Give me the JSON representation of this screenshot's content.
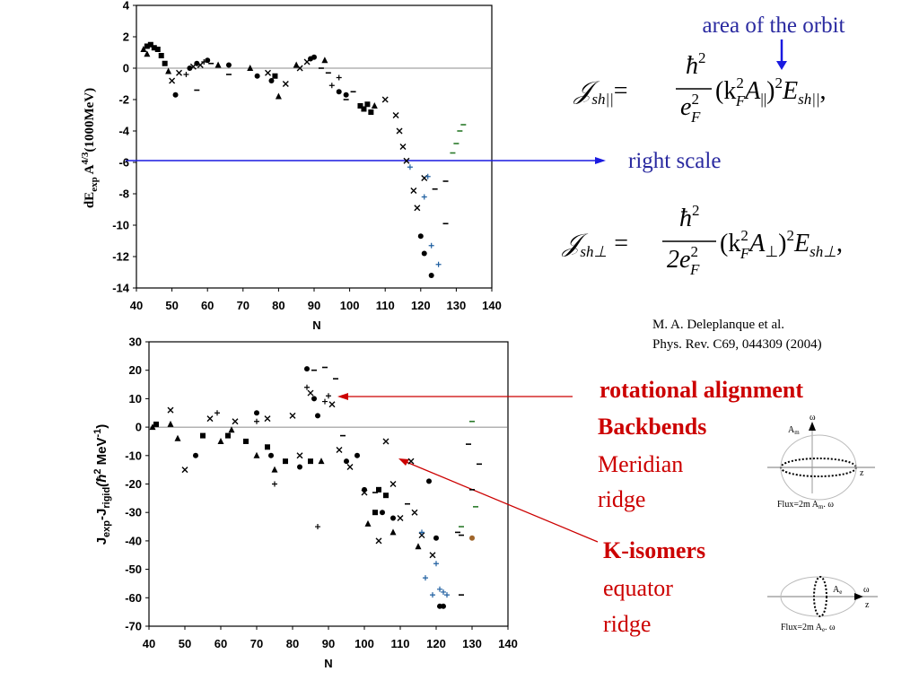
{
  "chart_data": [
    {
      "type": "scatter",
      "xlabel": "N",
      "ylabel": [
        "dE",
        "exp",
        " A",
        "4/3",
        "(1000MeV)"
      ],
      "xlim": [
        40,
        140
      ],
      "xticks": [
        40,
        50,
        60,
        70,
        80,
        90,
        100,
        110,
        120,
        130,
        140
      ],
      "ylim": [
        -14,
        4
      ],
      "yticks": [
        -14,
        -12,
        -10,
        -8,
        -6,
        -4,
        -2,
        0,
        2,
        4
      ],
      "hline": 0,
      "series": [
        {
          "marker": "square",
          "color": "#000000",
          "x": [
            43,
            44,
            45,
            46,
            47,
            48,
            79,
            103,
            104,
            105,
            106
          ],
          "values": [
            1.4,
            1.5,
            1.3,
            1.2,
            0.8,
            0.3,
            -0.5,
            -2.4,
            -2.6,
            -2.3,
            -2.8
          ]
        },
        {
          "marker": "circle",
          "color": "#000000",
          "x": [
            51,
            55,
            57,
            60,
            66,
            74,
            78,
            89,
            90,
            97,
            99,
            120,
            121,
            123
          ],
          "values": [
            -1.7,
            0,
            0.3,
            0.5,
            0.2,
            -0.5,
            -0.8,
            0.6,
            0.7,
            -1.5,
            -1.7,
            -10.7,
            -11.8,
            -13.2
          ]
        },
        {
          "marker": "triangle",
          "color": "#000000",
          "x": [
            42,
            43,
            49,
            63,
            72,
            80,
            85,
            93,
            107
          ],
          "values": [
            1.2,
            0.9,
            -0.2,
            0.2,
            0,
            -1.8,
            0.2,
            0.5,
            -2.4
          ]
        },
        {
          "marker": "x",
          "color": "#000000",
          "x": [
            50,
            52,
            56,
            58,
            77,
            82,
            86,
            88,
            110,
            113,
            114,
            115,
            116,
            118,
            119,
            121
          ],
          "values": [
            -0.8,
            -0.3,
            0.1,
            0.2,
            -0.3,
            -1,
            0,
            0.4,
            -2,
            -3,
            -4,
            -5,
            -5.9,
            -7.8,
            -8.9,
            -7
          ]
        },
        {
          "marker": "plus",
          "color": "#000000",
          "x": [
            54,
            59,
            95,
            97
          ],
          "values": [
            -0.4,
            0.4,
            -1.1,
            -0.6
          ]
        },
        {
          "marker": "plus",
          "color": "#1f5fa0",
          "x": [
            117,
            121,
            122,
            123,
            125
          ],
          "values": [
            -6.3,
            -8.2,
            -6.9,
            -11.3,
            -12.5
          ]
        },
        {
          "marker": "dash",
          "color": "#000000",
          "x": [
            57,
            61,
            66,
            92,
            94,
            99,
            101,
            124,
            127,
            127
          ],
          "values": [
            -1.4,
            0.3,
            -0.4,
            0,
            -0.3,
            -2,
            -1.5,
            -7.7,
            -7.2,
            -9.9
          ]
        },
        {
          "marker": "dash",
          "color": "#2a7a2a",
          "x": [
            129,
            130,
            131,
            132
          ],
          "values": [
            -5.4,
            -4.8,
            -4,
            -3.6
          ]
        }
      ]
    },
    {
      "type": "scatter",
      "xlabel": "N",
      "ylabel": [
        "J",
        "exp",
        "-J",
        "rigid",
        "(ħ",
        "2",
        " MeV",
        "-1",
        ")"
      ],
      "xlim": [
        40,
        140
      ],
      "xticks": [
        40,
        50,
        60,
        70,
        80,
        90,
        100,
        110,
        120,
        130,
        140
      ],
      "ylim": [
        -70,
        30
      ],
      "yticks": [
        -70,
        -60,
        -50,
        -40,
        -30,
        -20,
        -10,
        0,
        10,
        20,
        30
      ],
      "hline": 0,
      "series": [
        {
          "marker": "circle",
          "color": "#000000",
          "x": [
            84,
            86,
            87,
            70,
            53,
            98,
            74,
            82,
            100,
            105,
            118,
            120,
            121,
            122,
            108,
            95
          ],
          "values": [
            20.5,
            10,
            4,
            5,
            -10,
            -10,
            -10,
            -14,
            -22,
            -30,
            -19,
            -39,
            -63,
            -63,
            -32,
            -12
          ]
        },
        {
          "marker": "square",
          "color": "#000000",
          "x": [
            42,
            55,
            62,
            67,
            73,
            78,
            85,
            103,
            104,
            106
          ],
          "values": [
            1,
            -3,
            -3,
            -5,
            -7,
            -12,
            -12,
            -30,
            -22,
            -24
          ]
        },
        {
          "marker": "triangle",
          "color": "#000000",
          "x": [
            41,
            46,
            48,
            60,
            63,
            70,
            75,
            88,
            101,
            108,
            115
          ],
          "values": [
            0,
            1,
            -4,
            -5,
            -1,
            -10,
            -15,
            -12,
            -34,
            -37,
            -42
          ]
        },
        {
          "marker": "x",
          "color": "#000000",
          "x": [
            46,
            50,
            57,
            64,
            73,
            80,
            82,
            85,
            91,
            93,
            96,
            100,
            104,
            108,
            110,
            113,
            114,
            116,
            119,
            106
          ],
          "values": [
            6,
            -15,
            3,
            2,
            3,
            4,
            -10,
            12,
            8,
            -8,
            -14,
            -23,
            -40,
            -20,
            -32,
            -12,
            -30,
            -38,
            -45,
            -5
          ]
        },
        {
          "marker": "plus",
          "color": "#000000",
          "x": [
            59,
            70,
            84,
            89,
            90,
            87,
            75
          ],
          "values": [
            5,
            2,
            14,
            9,
            11,
            -35,
            -20
          ]
        },
        {
          "marker": "plus",
          "color": "#1f5fa0",
          "x": [
            116,
            117,
            119,
            120,
            121,
            122,
            123
          ],
          "values": [
            -37,
            -53,
            -59,
            -48,
            -57,
            -58,
            -59
          ]
        },
        {
          "marker": "dash",
          "color": "#000000",
          "x": [
            86,
            89,
            92,
            94,
            103,
            112,
            126,
            127,
            129,
            130,
            132,
            127
          ],
          "values": [
            20,
            21,
            17,
            -3,
            -23,
            -27,
            -37,
            -38,
            -6,
            -22,
            -13,
            -59
          ]
        },
        {
          "marker": "dash",
          "color": "#2a7a2a",
          "x": [
            130,
            131,
            127
          ],
          "values": [
            2,
            -28,
            -35
          ]
        },
        {
          "marker": "circle",
          "color": "#a0652a",
          "x": [
            130
          ],
          "values": [
            -39
          ]
        }
      ]
    }
  ],
  "annotations": {
    "orbit": "area of the orbit",
    "right_scale": "right scale",
    "citation": [
      "M. A. Deleplanque et al.",
      "Phys. Rev. C69, 044309 (2004)"
    ],
    "rotational": "rotational alignment",
    "backbends": "Backbends",
    "meridian": [
      "Meridian",
      "ridge"
    ],
    "kisomers": "K-isomers",
    "equator": [
      "equator",
      "ridge"
    ]
  },
  "formulas": {
    "parallel": {
      "lhs": "𝒥",
      "lhs_sub": "sh||",
      "eq": "=",
      "num": "ħ",
      "num_sup": "2",
      "den": "e",
      "den_sup": "2",
      "den_sub": "F",
      "open": "(k",
      "k_sup": "2",
      "k_sub": "F",
      "A": "A",
      "A_sub": "||",
      "close": ")",
      "close_sup": "2",
      "E": "E",
      "E_sub": "sh||",
      "end": ","
    },
    "perp": {
      "lhs": "𝒥",
      "lhs_sub": "sh⊥",
      "eq": "=",
      "num": "ħ",
      "num_sup": "2",
      "den": "2e",
      "den_sup": "2",
      "den_sub": "F",
      "open": "(k",
      "k_sup": "2",
      "k_sub": "F",
      "A": "A",
      "A_sub": "⊥",
      "close": ")",
      "close_sup": "2",
      "E": "E",
      "E_sub": "sh⊥",
      "end": ","
    }
  },
  "diagrams": {
    "meridian": {
      "axis": "A",
      "axis_sub": "m",
      "omega": "ω",
      "z": "z",
      "flux": "Flux=2m A",
      "flux_sub": "m",
      "flux_end": ". ω"
    },
    "equator": {
      "axis": "A",
      "axis_sub": "e",
      "omega": "ω",
      "z": "z",
      "flux": "Flux=2m A",
      "flux_sub": "e",
      "flux_end": ". ω"
    }
  }
}
